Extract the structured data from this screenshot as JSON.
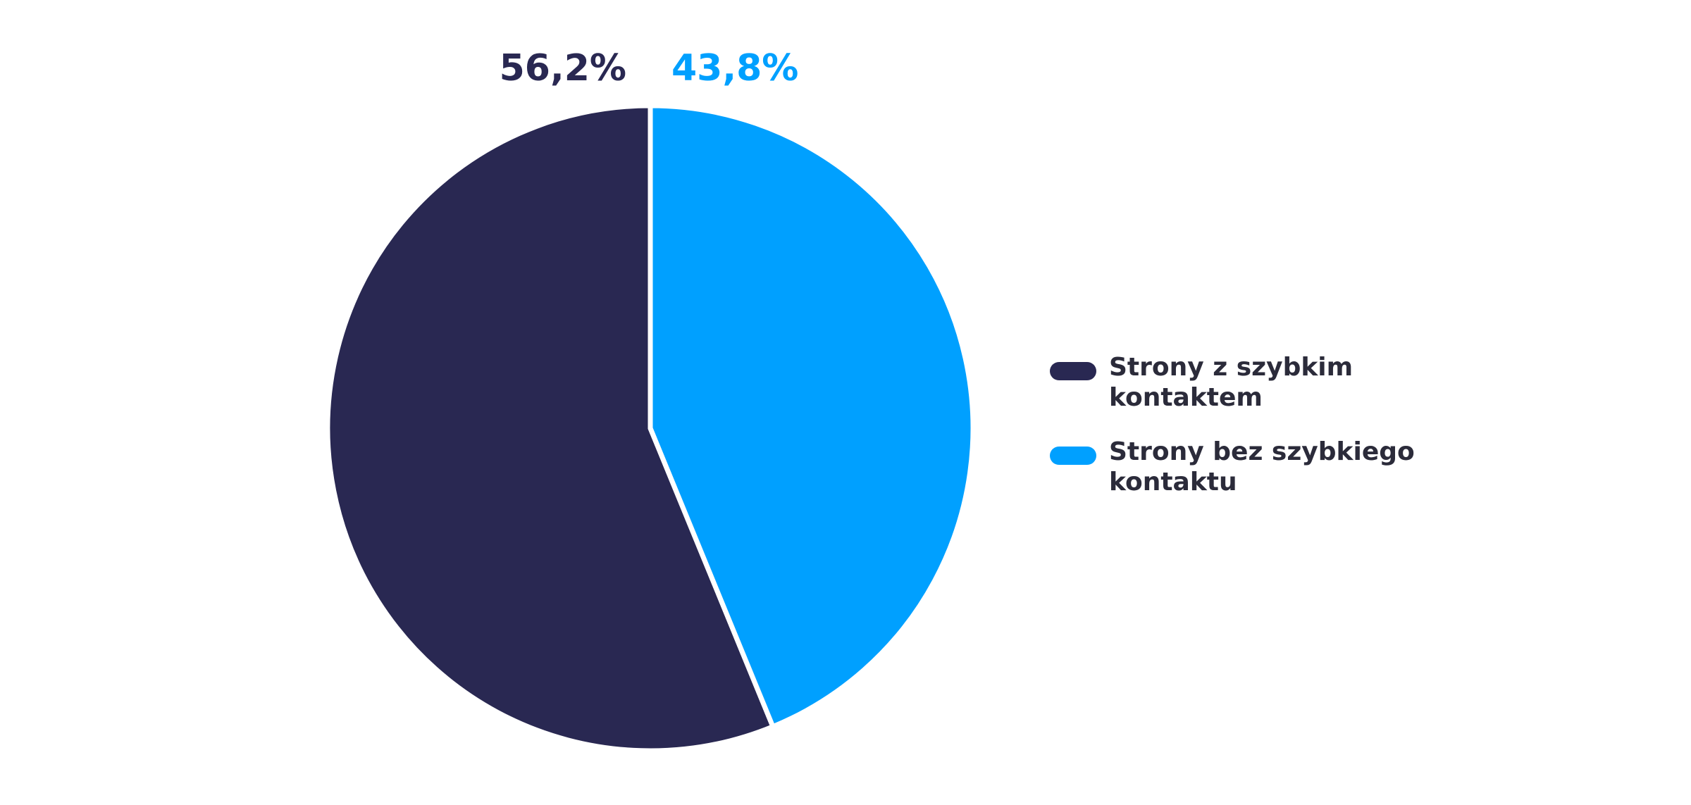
{
  "chart_data": {
    "type": "pie",
    "categories": [
      "Strony z szybkim kontaktem",
      "Strony bez szybkiego kontaktu"
    ],
    "values": [
      56.2,
      43.8
    ],
    "value_labels": [
      "56,2%",
      "43,8%"
    ],
    "colors": [
      "#292852",
      "#00a0ff"
    ]
  }
}
